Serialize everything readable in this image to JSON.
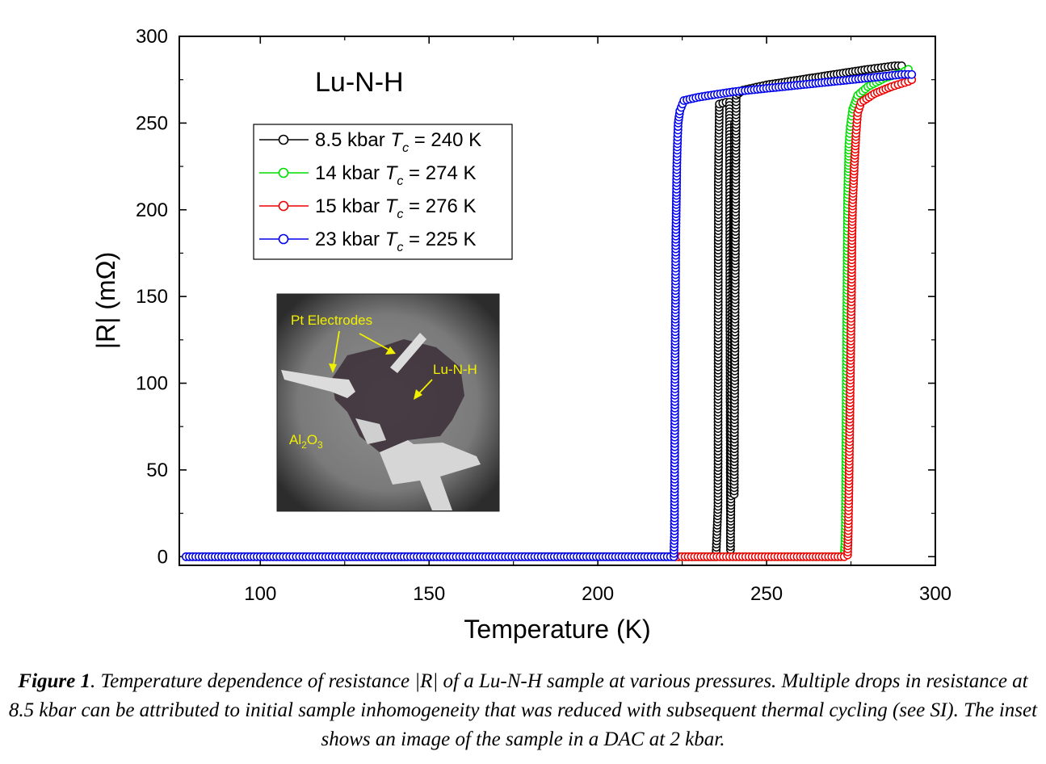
{
  "chart_data": {
    "type": "scatter",
    "title": "Lu-N-H",
    "xlabel": "Temperature (K)",
    "ylabel": "|R| (mΩ)",
    "xlim": [
      76,
      300
    ],
    "ylim": [
      -5,
      300
    ],
    "xticks": [
      100,
      150,
      200,
      250,
      300
    ],
    "yticks": [
      0,
      50,
      100,
      150,
      200,
      250,
      300
    ],
    "legend_position": "upper-left",
    "series": [
      {
        "name": "8.5 kbar",
        "tc_label": "= 240 K",
        "color": "#000000",
        "points": [
          [
            78,
            0
          ],
          [
            120,
            0
          ],
          [
            160,
            0
          ],
          [
            200,
            0
          ],
          [
            223,
            0
          ],
          [
            230,
            0
          ],
          [
            235,
            0
          ],
          [
            235.6,
            29
          ],
          [
            235.7,
            216
          ],
          [
            236,
            261
          ],
          [
            238,
            262
          ],
          [
            239,
            262
          ],
          [
            239.3,
            4
          ],
          [
            239.5,
            46
          ],
          [
            239.6,
            83
          ],
          [
            239.7,
            110
          ],
          [
            239.8,
            129
          ],
          [
            239.9,
            147
          ],
          [
            240,
            165
          ],
          [
            240.1,
            183
          ],
          [
            240.2,
            201
          ],
          [
            240.3,
            219
          ],
          [
            240.4,
            236
          ],
          [
            240.5,
            250
          ],
          [
            240.4,
            36
          ],
          [
            241,
            266
          ],
          [
            243,
            269
          ],
          [
            250,
            272
          ],
          [
            260,
            275
          ],
          [
            270,
            278
          ],
          [
            280,
            281
          ],
          [
            288,
            283
          ],
          [
            290,
            283
          ]
        ]
      },
      {
        "name": "14 kbar",
        "tc_label": "= 274 K",
        "color": "#00dd00",
        "points": [
          [
            223,
            0
          ],
          [
            240,
            0
          ],
          [
            260,
            0
          ],
          [
            272,
            0
          ],
          [
            273,
            2
          ],
          [
            273.2,
            7
          ],
          [
            273.3,
            14
          ],
          [
            273.4,
            32
          ],
          [
            273.5,
            60
          ],
          [
            273.6,
            90
          ],
          [
            273.7,
            120
          ],
          [
            273.8,
            150
          ],
          [
            273.9,
            180
          ],
          [
            274,
            205
          ],
          [
            274.2,
            222
          ],
          [
            274.4,
            238
          ],
          [
            274.8,
            248
          ],
          [
            275.5,
            258
          ],
          [
            277,
            266
          ],
          [
            280,
            271
          ],
          [
            285,
            276
          ],
          [
            290,
            279
          ],
          [
            292,
            281
          ]
        ]
      },
      {
        "name": "15 kbar",
        "tc_label": "= 276 K",
        "color": "#ee0000",
        "points": [
          [
            223,
            0
          ],
          [
            240,
            0
          ],
          [
            260,
            0
          ],
          [
            273,
            0
          ],
          [
            274,
            1
          ],
          [
            274.2,
            15
          ],
          [
            274.4,
            40
          ],
          [
            274.6,
            70
          ],
          [
            274.8,
            100
          ],
          [
            275,
            130
          ],
          [
            275.2,
            160
          ],
          [
            275.3,
            186
          ],
          [
            275.5,
            204
          ],
          [
            276,
            226
          ],
          [
            276.5,
            244
          ],
          [
            277,
            256
          ],
          [
            278,
            262
          ],
          [
            282,
            267
          ],
          [
            287,
            271
          ],
          [
            292,
            274
          ],
          [
            293,
            275
          ]
        ]
      },
      {
        "name": "23 kbar",
        "tc_label": "= 225 K",
        "color": "#0000ee",
        "points": [
          [
            78,
            0
          ],
          [
            100,
            0
          ],
          [
            130,
            0
          ],
          [
            160,
            0
          ],
          [
            190,
            0
          ],
          [
            210,
            0
          ],
          [
            222.5,
            0
          ],
          [
            222.7,
            13
          ],
          [
            222.8,
            82
          ],
          [
            222.9,
            117
          ],
          [
            223,
            146
          ],
          [
            223.1,
            183
          ],
          [
            223.2,
            196
          ],
          [
            223.3,
            210
          ],
          [
            223.4,
            225
          ],
          [
            223.6,
            240
          ],
          [
            223.8,
            250
          ],
          [
            224.3,
            257
          ],
          [
            225.5,
            263
          ],
          [
            230,
            265
          ],
          [
            240,
            268
          ],
          [
            250,
            270
          ],
          [
            260,
            272
          ],
          [
            270,
            274
          ],
          [
            280,
            276
          ],
          [
            290,
            278
          ],
          [
            293,
            278
          ]
        ]
      }
    ],
    "inset": {
      "labels": {
        "electrodes": "Pt Electrodes",
        "sample": "Lu-N-H",
        "substrate_main": "Al",
        "sub2": "2",
        "substrate_mid": "O",
        "sub3": "3"
      }
    }
  },
  "legend": {
    "t_symbol": "T",
    "t_sub": "c"
  },
  "caption": {
    "label": "Figure 1",
    "text": ". Temperature dependence of resistance |R| of a Lu-N-H sample at various pressures. Multiple drops in resistance at 8.5 kbar can be attributed to initial sample inhomogeneity that was reduced with subsequent thermal cycling (see SI). The inset shows an image of the sample in a DAC at 2 kbar."
  }
}
